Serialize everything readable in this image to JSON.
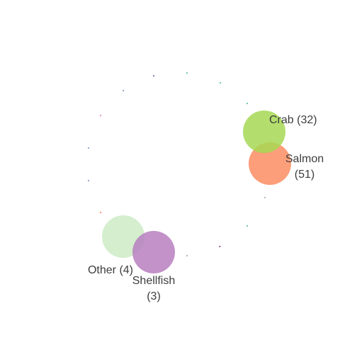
{
  "chart_data": {
    "type": "scatter",
    "subtype": "circular-bubble",
    "title": "",
    "xlabel": "",
    "ylabel": "",
    "grid": false,
    "legend": "none",
    "points": [
      {
        "name": "Crab",
        "value": 32,
        "label_lines": [
          "Crab (32)"
        ],
        "color": "#a6d854"
      },
      {
        "name": "Salmon",
        "value": 51,
        "label_lines": [
          "Salmon",
          "(51)"
        ],
        "color": "#fc8d62"
      },
      {
        "name": "Other",
        "value": 4,
        "label_lines": [
          "Other (4)"
        ],
        "color": "#ccebc5"
      },
      {
        "name": "Shellfish",
        "value": 3,
        "label_lines": [
          "Shellfish",
          "(3)"
        ],
        "color": "#b77fbf"
      }
    ],
    "minor_points": [
      {
        "color": "#8c6bb1"
      },
      {
        "color": "#66c2a5"
      },
      {
        "color": "#66c2a5"
      },
      {
        "color": "#8da0cb"
      },
      {
        "color": "#66c2a5"
      },
      {
        "color": "#e78ac3"
      },
      {
        "color": "#8da0cb"
      },
      {
        "color": "#8da0cb"
      },
      {
        "color": "#fc8d62"
      },
      {
        "color": "#b3b3b3"
      },
      {
        "color": "#66c2a5"
      },
      {
        "color": "#b3b3b3"
      },
      {
        "color": "#e5c494"
      },
      {
        "color": "#8c6bb1"
      }
    ]
  }
}
